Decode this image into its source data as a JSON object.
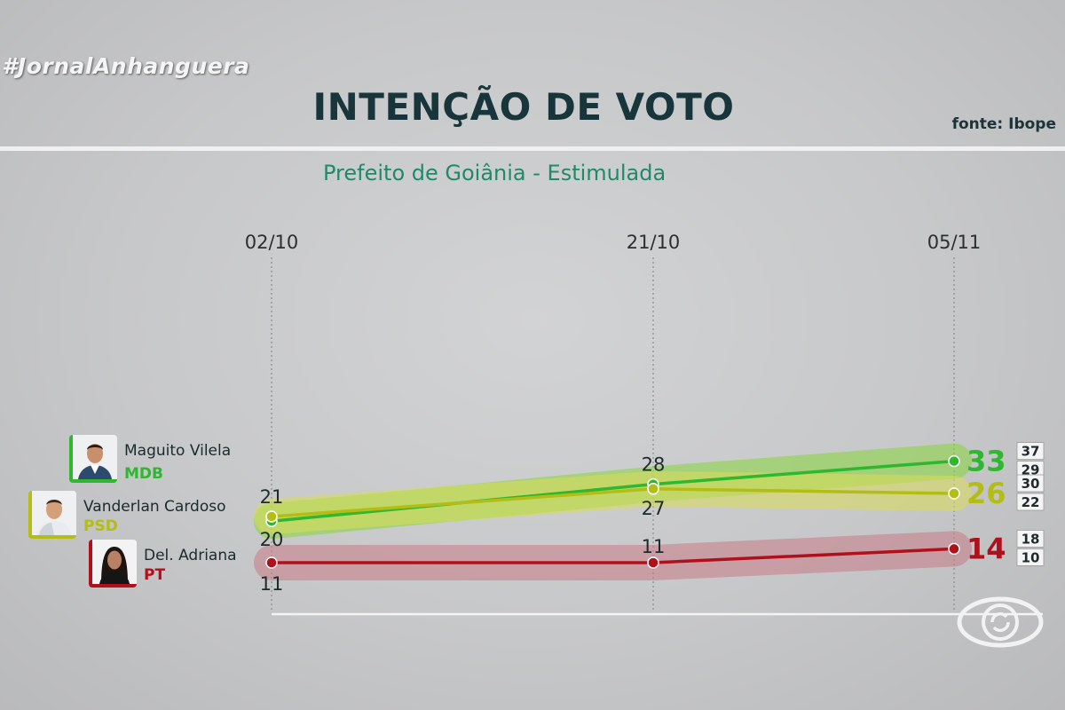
{
  "header": {
    "hashtag": "#JornalAnhanguera",
    "title": "INTENÇÃO DE VOTO",
    "source": "fonte: Ibope",
    "subtitle": "Prefeito de Goiânia - Estimulada"
  },
  "candidates": [
    {
      "name": "Maguito Vilela",
      "party": "MDB",
      "party_color": "#2fb82f",
      "photo_icon": "candidate-photo-icon"
    },
    {
      "name": "Vanderlan Cardoso",
      "party": "PSD",
      "party_color": "#b4bd15",
      "photo_icon": "candidate-photo-icon"
    },
    {
      "name": "Del. Adriana",
      "party": "PT",
      "party_color": "#b0101b",
      "photo_icon": "candidate-photo-icon"
    }
  ],
  "chart_data": {
    "type": "line",
    "categories": [
      "02/10",
      "21/10",
      "05/11"
    ],
    "series": [
      {
        "name": "Maguito Vilela",
        "values": [
          20,
          28,
          33
        ],
        "color": "#2fb82f",
        "band_color": "#86d63a",
        "margin": [
          "37",
          "29"
        ]
      },
      {
        "name": "Vanderlan Cardoso",
        "values": [
          21,
          27,
          26
        ],
        "color": "#b4bd15",
        "band_color": "#d8dc55",
        "margin": [
          "30",
          "22"
        ]
      },
      {
        "name": "Del. Adriana",
        "values": [
          11,
          11,
          14
        ],
        "color": "#b0101b",
        "band_color": "#c97a86",
        "margin": [
          "18",
          "10"
        ]
      }
    ],
    "grid": "vertical dotted lines at each date",
    "legend": "left, beside the first point of each series"
  },
  "logo_icon": "globo-logo-icon"
}
